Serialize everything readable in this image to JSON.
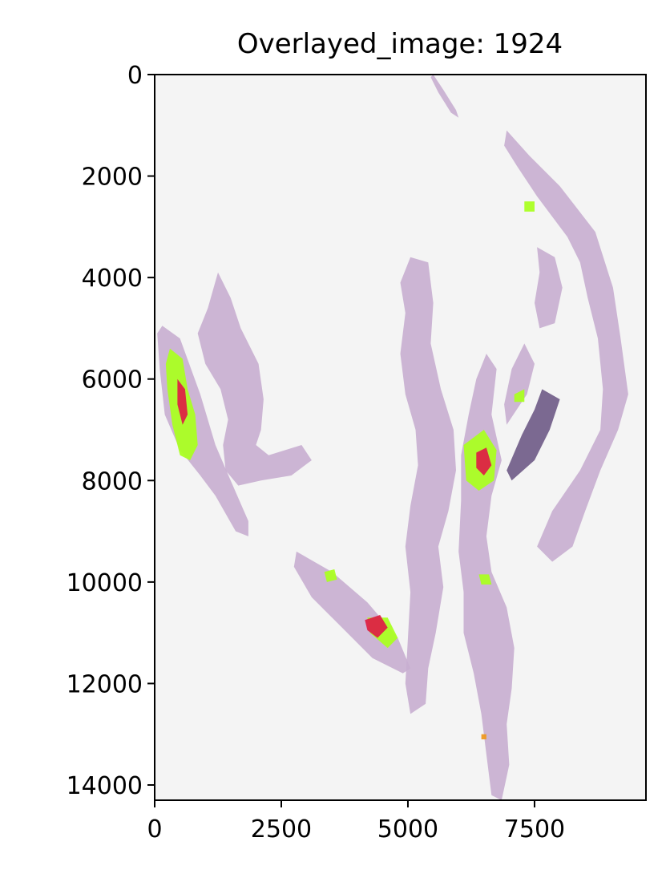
{
  "chart_data": {
    "type": "image",
    "title": "Overlayed_image: 1924",
    "xlabel": "",
    "ylabel": "",
    "xlim": [
      0,
      9700
    ],
    "ylim": [
      14300,
      0
    ],
    "x_ticks": [
      0,
      2500,
      5000,
      7500
    ],
    "x_tick_labels": [
      "0",
      "2500",
      "5000",
      "7500"
    ],
    "y_ticks": [
      0,
      2000,
      4000,
      6000,
      8000,
      10000,
      12000,
      14000
    ],
    "y_tick_labels": [
      "0",
      "2000",
      "4000",
      "6000",
      "8000",
      "10000",
      "12000",
      "14000"
    ],
    "grid": false,
    "colors": {
      "background": "#f4f4f4",
      "tissue": "#c8aed0",
      "tissue_dark": "#6e5a86",
      "overlay_green": "#aaff22",
      "overlay_red": "#dd2244",
      "overlay_orange": "#ee9922"
    },
    "tissue_regions": [
      {
        "name": "strip-1",
        "color": "tissue",
        "points": [
          [
            150,
            4950
          ],
          [
            500,
            5200
          ],
          [
            900,
            6300
          ],
          [
            1200,
            7300
          ],
          [
            1500,
            8000
          ],
          [
            1850,
            8800
          ],
          [
            1850,
            9100
          ],
          [
            1600,
            9000
          ],
          [
            1200,
            8300
          ],
          [
            900,
            7900
          ],
          [
            500,
            7400
          ],
          [
            200,
            6700
          ],
          [
            100,
            5800
          ],
          [
            50,
            5100
          ]
        ]
      },
      {
        "name": "strip-2",
        "color": "tissue",
        "points": [
          [
            1250,
            3900
          ],
          [
            1500,
            4400
          ],
          [
            1700,
            5000
          ],
          [
            2050,
            5700
          ],
          [
            2150,
            6400
          ],
          [
            2100,
            7000
          ],
          [
            2000,
            7300
          ],
          [
            2250,
            7500
          ],
          [
            2900,
            7300
          ],
          [
            3100,
            7600
          ],
          [
            2700,
            7900
          ],
          [
            2100,
            8000
          ],
          [
            1650,
            8100
          ],
          [
            1400,
            7800
          ],
          [
            1350,
            7300
          ],
          [
            1450,
            6800
          ],
          [
            1300,
            6200
          ],
          [
            1000,
            5700
          ],
          [
            850,
            5100
          ],
          [
            1050,
            4600
          ]
        ]
      },
      {
        "name": "strip-3",
        "color": "tissue",
        "points": [
          [
            2800,
            9400
          ],
          [
            3500,
            9800
          ],
          [
            4200,
            10400
          ],
          [
            4800,
            11100
          ],
          [
            5050,
            11700
          ],
          [
            4900,
            11800
          ],
          [
            4300,
            11500
          ],
          [
            3700,
            10900
          ],
          [
            3100,
            10300
          ],
          [
            2750,
            9700
          ]
        ]
      },
      {
        "name": "strip-4",
        "color": "tissue",
        "points": [
          [
            5050,
            3600
          ],
          [
            5400,
            3700
          ],
          [
            5500,
            4500
          ],
          [
            5450,
            5300
          ],
          [
            5650,
            6200
          ],
          [
            5900,
            7000
          ],
          [
            5950,
            7800
          ],
          [
            5800,
            8600
          ],
          [
            5600,
            9300
          ],
          [
            5700,
            10100
          ],
          [
            5550,
            11000
          ],
          [
            5400,
            11700
          ],
          [
            5350,
            12400
          ],
          [
            5050,
            12600
          ],
          [
            4950,
            12000
          ],
          [
            5000,
            11100
          ],
          [
            5050,
            10200
          ],
          [
            4950,
            9300
          ],
          [
            5050,
            8500
          ],
          [
            5200,
            7700
          ],
          [
            5150,
            7000
          ],
          [
            4950,
            6300
          ],
          [
            4850,
            5500
          ],
          [
            4950,
            4700
          ],
          [
            4850,
            4100
          ]
        ]
      },
      {
        "name": "strip-5",
        "color": "tissue",
        "points": [
          [
            6550,
            5500
          ],
          [
            6750,
            5800
          ],
          [
            6650,
            6700
          ],
          [
            6850,
            7600
          ],
          [
            6650,
            8300
          ],
          [
            6550,
            9100
          ],
          [
            6650,
            9800
          ],
          [
            6950,
            10500
          ],
          [
            7100,
            11300
          ],
          [
            7050,
            12100
          ],
          [
            6950,
            12800
          ],
          [
            7000,
            13600
          ],
          [
            6850,
            14300
          ],
          [
            6650,
            14200
          ],
          [
            6550,
            13400
          ],
          [
            6450,
            12600
          ],
          [
            6300,
            11800
          ],
          [
            6100,
            11000
          ],
          [
            6100,
            10200
          ],
          [
            6000,
            9400
          ],
          [
            6050,
            8400
          ],
          [
            6050,
            7500
          ],
          [
            6200,
            6700
          ],
          [
            6350,
            6000
          ]
        ]
      },
      {
        "name": "strip-6",
        "color": "tissue",
        "points": [
          [
            6950,
            6900
          ],
          [
            7350,
            6300
          ],
          [
            7500,
            5700
          ],
          [
            7300,
            5300
          ],
          [
            7050,
            5800
          ],
          [
            6900,
            6500
          ]
        ]
      },
      {
        "name": "strip-7",
        "color": "tissue",
        "points": [
          [
            7550,
            3400
          ],
          [
            7900,
            3600
          ],
          [
            8050,
            4200
          ],
          [
            7900,
            4900
          ],
          [
            7600,
            5000
          ],
          [
            7500,
            4500
          ],
          [
            7600,
            3900
          ]
        ]
      },
      {
        "name": "strip-8",
        "color": "tissue",
        "points": [
          [
            6950,
            1100
          ],
          [
            7400,
            1600
          ],
          [
            8000,
            2200
          ],
          [
            8700,
            3100
          ],
          [
            9050,
            4200
          ],
          [
            9200,
            5200
          ],
          [
            9350,
            6300
          ],
          [
            9150,
            7000
          ],
          [
            8800,
            7800
          ],
          [
            8500,
            8600
          ],
          [
            8250,
            9300
          ],
          [
            7850,
            9600
          ],
          [
            7550,
            9300
          ],
          [
            7850,
            8600
          ],
          [
            8400,
            7800
          ],
          [
            8800,
            7000
          ],
          [
            8850,
            6200
          ],
          [
            8750,
            5200
          ],
          [
            8550,
            4400
          ],
          [
            8400,
            3700
          ],
          [
            8150,
            3200
          ],
          [
            7550,
            2400
          ],
          [
            7150,
            1800
          ],
          [
            6900,
            1400
          ]
        ]
      },
      {
        "name": "strip-dark",
        "color": "tissue_dark",
        "points": [
          [
            7650,
            6200
          ],
          [
            8000,
            6400
          ],
          [
            7800,
            7000
          ],
          [
            7500,
            7600
          ],
          [
            7050,
            8000
          ],
          [
            6950,
            7800
          ],
          [
            7250,
            7100
          ],
          [
            7500,
            6600
          ]
        ]
      },
      {
        "name": "sliver-top",
        "color": "tissue",
        "points": [
          [
            5500,
            0
          ],
          [
            5700,
            300
          ],
          [
            5950,
            700
          ],
          [
            6000,
            850
          ],
          [
            5850,
            750
          ],
          [
            5600,
            350
          ],
          [
            5450,
            50
          ]
        ]
      }
    ],
    "overlay_regions": [
      {
        "name": "green-1",
        "color": "overlay_green",
        "points": [
          [
            300,
            5400
          ],
          [
            550,
            5600
          ],
          [
            650,
            6200
          ],
          [
            800,
            6700
          ],
          [
            850,
            7300
          ],
          [
            700,
            7600
          ],
          [
            500,
            7500
          ],
          [
            350,
            6900
          ],
          [
            250,
            6200
          ],
          [
            220,
            5700
          ]
        ]
      },
      {
        "name": "red-1",
        "color": "overlay_red",
        "points": [
          [
            450,
            6000
          ],
          [
            600,
            6200
          ],
          [
            650,
            6700
          ],
          [
            550,
            6900
          ],
          [
            450,
            6500
          ]
        ]
      },
      {
        "name": "green-2",
        "color": "overlay_green",
        "points": [
          [
            6100,
            7300
          ],
          [
            6500,
            7000
          ],
          [
            6750,
            7400
          ],
          [
            6700,
            8000
          ],
          [
            6400,
            8200
          ],
          [
            6150,
            8000
          ]
        ]
      },
      {
        "name": "red-2",
        "color": "overlay_red",
        "points": [
          [
            6350,
            7450
          ],
          [
            6550,
            7350
          ],
          [
            6650,
            7700
          ],
          [
            6500,
            7900
          ],
          [
            6350,
            7750
          ]
        ]
      },
      {
        "name": "green-3",
        "color": "overlay_green",
        "points": [
          [
            4200,
            10700
          ],
          [
            4600,
            10700
          ],
          [
            4800,
            11100
          ],
          [
            4600,
            11300
          ],
          [
            4250,
            11000
          ]
        ]
      },
      {
        "name": "red-3",
        "color": "overlay_red",
        "points": [
          [
            4150,
            10750
          ],
          [
            4450,
            10650
          ],
          [
            4600,
            10900
          ],
          [
            4400,
            11100
          ],
          [
            4200,
            10950
          ]
        ]
      },
      {
        "name": "green-4",
        "color": "overlay_green",
        "points": [
          [
            3350,
            9800
          ],
          [
            3550,
            9750
          ],
          [
            3600,
            9950
          ],
          [
            3400,
            10000
          ]
        ]
      },
      {
        "name": "green-5",
        "color": "overlay_green",
        "points": [
          [
            6400,
            9850
          ],
          [
            6600,
            9850
          ],
          [
            6650,
            10050
          ],
          [
            6450,
            10050
          ]
        ]
      },
      {
        "name": "green-6",
        "color": "overlay_green",
        "points": [
          [
            7300,
            2500
          ],
          [
            7500,
            2500
          ],
          [
            7500,
            2700
          ],
          [
            7300,
            2700
          ]
        ]
      },
      {
        "name": "green-7",
        "color": "overlay_green",
        "points": [
          [
            7100,
            6300
          ],
          [
            7300,
            6200
          ],
          [
            7300,
            6450
          ],
          [
            7100,
            6450
          ]
        ]
      },
      {
        "name": "orange-1",
        "color": "overlay_orange",
        "points": [
          [
            6450,
            13000
          ],
          [
            6550,
            13000
          ],
          [
            6550,
            13100
          ],
          [
            6450,
            13100
          ]
        ]
      }
    ]
  }
}
